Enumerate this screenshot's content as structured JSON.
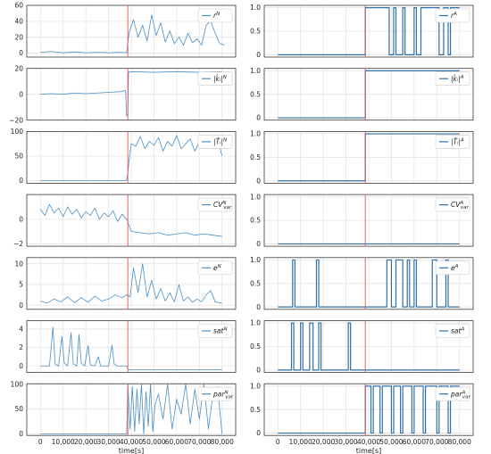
{
  "figure": {
    "x_axis_label": "time[s]",
    "x_ticks": [
      0,
      10000,
      20000,
      30000,
      40000,
      50000,
      60000,
      70000,
      80000
    ],
    "x_tick_labels": [
      "0",
      "10,000",
      "20,000",
      "30,000",
      "40,000",
      "50,000",
      "60,000",
      "70,000",
      "80,000"
    ],
    "xlim": [
      -6000,
      86000
    ],
    "event_time": 38500,
    "line_color": "#4c8fc4",
    "binary_line_color": "#2f6fa8",
    "event_color": "#e05555",
    "grid_color": "#e4e4e4"
  },
  "chart_data": [
    {
      "type": "line",
      "legend": {
        "base": "r",
        "sup": "N"
      },
      "ylim": [
        -5,
        60
      ],
      "yticks": [
        0,
        20,
        40,
        60
      ],
      "x": [
        0,
        5000,
        10000,
        15000,
        20000,
        25000,
        30000,
        35000,
        38000,
        39000,
        41000,
        43000,
        45000,
        47000,
        49000,
        51000,
        53000,
        55000,
        57000,
        59000,
        61000,
        63000,
        65000,
        67000,
        69000,
        71000,
        73000,
        75000,
        77000,
        79000,
        81000
      ],
      "y": [
        1,
        2,
        0.5,
        1.5,
        0.5,
        1,
        0.5,
        1,
        0.5,
        25,
        42,
        20,
        35,
        15,
        48,
        22,
        38,
        14,
        28,
        12,
        20,
        10,
        25,
        13,
        18,
        10,
        35,
        40,
        25,
        12,
        10
      ]
    },
    {
      "type": "line",
      "legend": {
        "base": "r",
        "sup": "A"
      },
      "ylim": [
        -0.05,
        1.05
      ],
      "yticks": [
        0,
        0.5,
        1
      ],
      "x": [
        0,
        38500,
        38500,
        39000,
        49000,
        49000,
        51000,
        51000,
        52000,
        52000,
        55000,
        55000,
        56000,
        56000,
        60000,
        60000,
        61000,
        61000,
        63000,
        63000,
        64000,
        64000,
        71000,
        71000,
        73000,
        73000,
        75000,
        75000,
        76000,
        76000,
        80000
      ],
      "y": [
        0,
        0,
        1,
        1,
        1,
        0,
        0,
        1,
        1,
        0,
        0,
        1,
        1,
        0,
        0,
        1,
        1,
        0,
        0,
        1,
        1,
        1,
        1,
        0,
        0,
        1,
        1,
        0,
        0,
        1,
        1
      ]
    },
    {
      "type": "line",
      "legend": {
        "base": "|k̂ᵢ|",
        "sup": "N"
      },
      "ylim": [
        -20,
        20
      ],
      "yticks": [
        -20,
        0,
        20
      ],
      "x": [
        0,
        5000,
        10000,
        15000,
        20000,
        25000,
        30000,
        35000,
        37500,
        38000,
        38500,
        38800,
        40000,
        50000,
        60000,
        70000,
        80000
      ],
      "y": [
        0,
        0.5,
        0,
        1,
        0.5,
        1,
        1.5,
        2,
        3,
        -17,
        -15,
        17,
        17.5,
        17,
        17.5,
        17,
        17.5
      ]
    },
    {
      "type": "line",
      "legend": {
        "base": "|k̂ᵢ|",
        "sup": "A"
      },
      "ylim": [
        -0.05,
        1.05
      ],
      "yticks": [
        0,
        0.5,
        1
      ],
      "x": [
        0,
        38500,
        38500,
        80000
      ],
      "y": [
        0,
        0,
        1,
        1
      ]
    },
    {
      "type": "line",
      "legend": {
        "base": "|T̂ᵢ|",
        "sup": "N"
      },
      "ylim": [
        -5,
        100
      ],
      "yticks": [
        0,
        50,
        100
      ],
      "x": [
        0,
        10000,
        20000,
        30000,
        36000,
        38000,
        38500,
        39000,
        40000,
        42000,
        44000,
        46000,
        48000,
        50000,
        52000,
        54000,
        56000,
        58000,
        60000,
        62000,
        64000,
        66000,
        68000,
        70000,
        72000,
        74000,
        76000,
        78000,
        80000
      ],
      "y": [
        0,
        0,
        0,
        0,
        0,
        1,
        15,
        40,
        75,
        70,
        90,
        65,
        80,
        72,
        88,
        60,
        80,
        70,
        92,
        65,
        75,
        85,
        60,
        80,
        70,
        88,
        65,
        85,
        50
      ]
    },
    {
      "type": "line",
      "legend": {
        "base": "|T̂ᵢ|",
        "sup": "A"
      },
      "ylim": [
        -0.05,
        1.05
      ],
      "yticks": [
        0,
        0.5,
        1
      ],
      "x": [
        0,
        38500,
        38500,
        80000
      ],
      "y": [
        0,
        0,
        1,
        1
      ]
    },
    {
      "type": "line",
      "legend": {
        "base": "CV",
        "sup": "N",
        "sub": "var"
      },
      "ylim": [
        -2.2,
        2
      ],
      "yticks": [
        -2,
        0
      ],
      "x": [
        0,
        2000,
        4000,
        6000,
        8000,
        10000,
        12000,
        14000,
        16000,
        18000,
        20000,
        22000,
        24000,
        26000,
        28000,
        30000,
        32000,
        34000,
        36000,
        38000,
        40000,
        44000,
        48000,
        52000,
        56000,
        60000,
        64000,
        68000,
        72000,
        76000,
        80000
      ],
      "y": [
        0.8,
        0.3,
        1.2,
        0.5,
        0.9,
        0.2,
        1.0,
        0.4,
        0.8,
        0.1,
        0.6,
        0.3,
        0.9,
        0.0,
        0.5,
        0.2,
        0.7,
        -0.2,
        0.4,
        0.0,
        -1.0,
        -1.1,
        -1.2,
        -1.1,
        -1.3,
        -1.2,
        -1.1,
        -1.3,
        -1.2,
        -1.3,
        -1.4
      ]
    },
    {
      "type": "line",
      "legend": {
        "base": "CV",
        "sup": "A",
        "sub": "var"
      },
      "ylim": [
        -0.05,
        1.05
      ],
      "yticks": [
        0,
        0.5,
        1
      ],
      "x": [
        0,
        80000
      ],
      "y": [
        0,
        0
      ]
    },
    {
      "type": "line",
      "legend": {
        "base": "e",
        "sup": "N"
      },
      "ylim": [
        -1,
        11.5
      ],
      "yticks": [
        0,
        5,
        10
      ],
      "x": [
        0,
        3000,
        6000,
        9000,
        12000,
        15000,
        18000,
        21000,
        24000,
        27000,
        30000,
        33000,
        36000,
        38000,
        39500,
        41000,
        43000,
        45000,
        47000,
        49000,
        51000,
        53000,
        55000,
        57000,
        59000,
        61000,
        63000,
        65000,
        67000,
        69000,
        71000,
        73000,
        75000,
        77000,
        80000
      ],
      "y": [
        1,
        0.5,
        1.5,
        0.8,
        2,
        0.6,
        1.8,
        0.7,
        2.2,
        1.0,
        1.5,
        2.5,
        1.8,
        2.5,
        2.0,
        9,
        3,
        10,
        2,
        6,
        1.5,
        4,
        1,
        3,
        0.8,
        5,
        1,
        2,
        0.7,
        1.5,
        0.8,
        2.5,
        3.5,
        0.8,
        0.5
      ]
    },
    {
      "type": "line",
      "legend": {
        "base": "e",
        "sup": "A"
      },
      "ylim": [
        -0.05,
        1.05
      ],
      "yticks": [
        0,
        0.5,
        1
      ],
      "x": [
        0,
        6500,
        6500,
        7500,
        7500,
        17000,
        17000,
        18000,
        18000,
        48000,
        48000,
        50000,
        50000,
        52000,
        52000,
        55000,
        55000,
        57000,
        57000,
        58000,
        58000,
        60000,
        60000,
        61000,
        61000,
        68000,
        68000,
        70000,
        70000,
        74000,
        74000,
        75000,
        75000,
        80000
      ],
      "y": [
        0,
        0,
        1,
        1,
        0,
        0,
        1,
        1,
        0,
        0,
        1,
        1,
        0,
        0,
        1,
        1,
        0,
        0,
        1,
        1,
        0,
        0,
        1,
        1,
        0,
        0,
        1,
        1,
        0,
        0,
        1,
        1,
        0,
        0
      ]
    },
    {
      "type": "line",
      "legend": {
        "base": "sat",
        "sup": "N"
      },
      "ylim": [
        -0.7,
        4.9
      ],
      "yticks": [
        0,
        2,
        4
      ],
      "x": [
        0,
        4000,
        5500,
        6500,
        8000,
        9500,
        10500,
        12000,
        13500,
        14500,
        16000,
        17000,
        18000,
        19500,
        21000,
        22000,
        24000,
        25500,
        26500,
        28000,
        30000,
        31500,
        32500,
        34000,
        36000,
        38000,
        38600,
        50000,
        60000,
        70000,
        80000
      ],
      "y": [
        0,
        0,
        4.2,
        0.2,
        0,
        3.2,
        0.3,
        0,
        3.6,
        0.2,
        0,
        3.4,
        0.3,
        0,
        2.2,
        0.1,
        0,
        1.0,
        0,
        0,
        0,
        2.2,
        0.2,
        0,
        0,
        0,
        -0.4,
        -0.4,
        -0.4,
        -0.4,
        -0.4
      ]
    },
    {
      "type": "line",
      "legend": {
        "base": "sat",
        "sup": "A"
      },
      "ylim": [
        -0.05,
        1.05
      ],
      "yticks": [
        0,
        0.5,
        1
      ],
      "x": [
        0,
        6000,
        6000,
        7000,
        7000,
        10000,
        10000,
        11000,
        11000,
        14000,
        14000,
        15500,
        15500,
        18000,
        18000,
        19000,
        19000,
        31000,
        31000,
        32000,
        32000,
        80000
      ],
      "y": [
        0,
        0,
        1,
        1,
        0,
        0,
        1,
        1,
        0,
        0,
        1,
        1,
        0,
        0,
        1,
        1,
        0,
        0,
        1,
        1,
        0,
        0
      ]
    },
    {
      "type": "line",
      "legend": {
        "base": "par",
        "sup": "N",
        "sub": "var"
      },
      "ylim": [
        -3,
        101
      ],
      "yticks": [
        0,
        50,
        100
      ],
      "x": [
        0,
        38000,
        38500,
        39500,
        40500,
        41500,
        42500,
        43500,
        44500,
        45500,
        46500,
        47500,
        48500,
        49500,
        50500,
        52000,
        54000,
        56000,
        58000,
        60000,
        62000,
        64000,
        66000,
        68000,
        70000,
        72000,
        74000,
        76000,
        78000,
        80000
      ],
      "y": [
        0,
        0,
        100,
        10,
        95,
        5,
        90,
        20,
        100,
        0,
        85,
        15,
        100,
        5,
        60,
        80,
        30,
        100,
        10,
        70,
        40,
        100,
        20,
        90,
        30,
        100,
        10,
        80,
        95,
        0
      ]
    },
    {
      "type": "line",
      "legend": {
        "base": "par",
        "sup": "A",
        "sub": "var"
      },
      "ylim": [
        -0.05,
        1.05
      ],
      "yticks": [
        0,
        0.5,
        1
      ],
      "x": [
        0,
        38500,
        38500,
        41000,
        41000,
        42000,
        42000,
        45000,
        45000,
        46000,
        46000,
        50000,
        50000,
        51000,
        51000,
        54000,
        54000,
        55000,
        55000,
        59000,
        59000,
        60000,
        60000,
        64000,
        64000,
        65000,
        65000,
        70000,
        70000,
        71000,
        71000,
        75000,
        75000,
        76000,
        76000,
        80000
      ],
      "y": [
        0,
        0,
        1,
        1,
        0,
        0,
        1,
        1,
        0,
        0,
        1,
        1,
        0,
        0,
        1,
        1,
        0,
        0,
        1,
        1,
        0,
        0,
        1,
        1,
        0,
        0,
        1,
        1,
        0,
        0,
        1,
        1,
        0,
        0,
        1,
        1
      ]
    }
  ]
}
